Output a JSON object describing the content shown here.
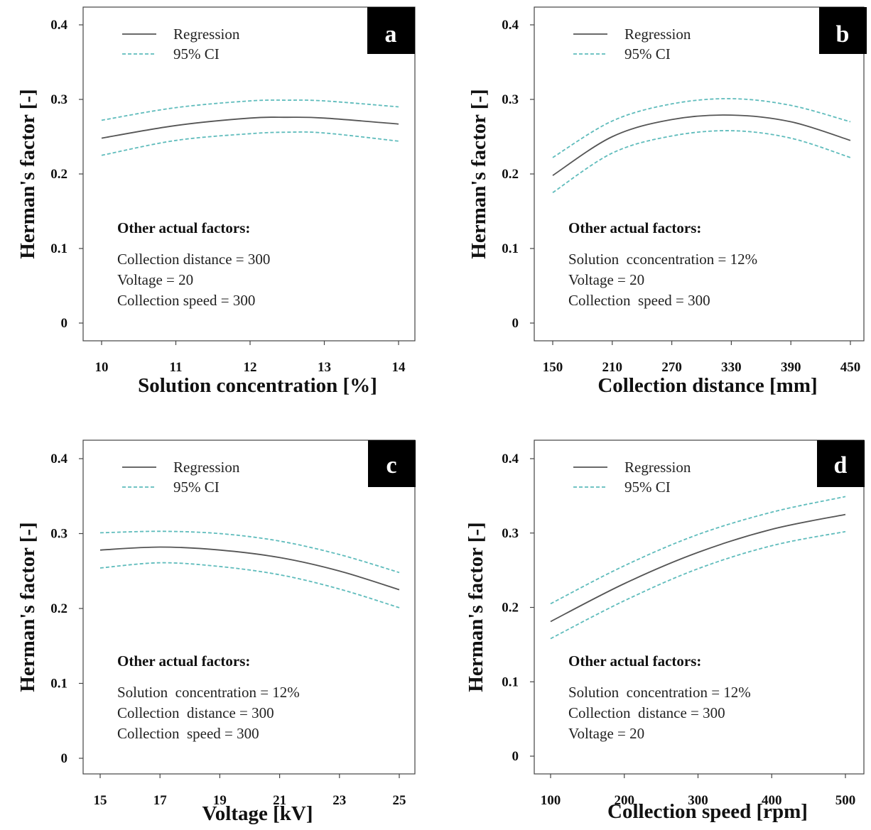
{
  "colors": {
    "regression": "#555555",
    "ci": "#5fbcbc",
    "frame": "#444444",
    "badge": "#000000"
  },
  "legend": {
    "regression": "Regression",
    "ci": "95% CI"
  },
  "ylabel": "Herman's factor [-]",
  "note_title": "Other actual factors:",
  "chart_data": [
    {
      "type": "line",
      "panel": "a",
      "xlabel": "Solution concentration [%]",
      "ylabel": "Herman's factor [-]",
      "xlim": [
        10,
        14
      ],
      "ylim": [
        0,
        0.4
      ],
      "xticks": [
        "10",
        "11",
        "12",
        "13",
        "14"
      ],
      "yticks": [
        "0",
        "0.1",
        "0.2",
        "0.3",
        "0.4"
      ],
      "grid": false,
      "legend_position": "top-left",
      "x": [
        10,
        11,
        12,
        12.5,
        13,
        14
      ],
      "series": [
        {
          "name": "Regression",
          "values": [
            0.248,
            0.265,
            0.275,
            0.276,
            0.275,
            0.267
          ]
        },
        {
          "name": "95% CI",
          "values": [
            0.272,
            0.289,
            0.298,
            0.299,
            0.298,
            0.29
          ]
        },
        {
          "name": "95% CI",
          "values": [
            0.225,
            0.245,
            0.254,
            0.256,
            0.255,
            0.244
          ]
        }
      ],
      "notes": [
        "Collection distance = 300",
        "Voltage = 20",
        "Collection speed = 300"
      ]
    },
    {
      "type": "line",
      "panel": "b",
      "xlabel": "Collection distance [mm]",
      "ylabel": "Herman's factor [-]",
      "xlim": [
        150,
        450
      ],
      "ylim": [
        0,
        0.4
      ],
      "xticks": [
        "150",
        "210",
        "270",
        "330",
        "390",
        "450"
      ],
      "yticks": [
        "0",
        "0.1",
        "0.2",
        "0.3",
        "0.4"
      ],
      "grid": false,
      "legend_position": "top-left",
      "x": [
        150,
        210,
        270,
        330,
        390,
        450
      ],
      "series": [
        {
          "name": "Regression",
          "values": [
            0.198,
            0.25,
            0.273,
            0.279,
            0.27,
            0.245
          ]
        },
        {
          "name": "95% CI",
          "values": [
            0.222,
            0.271,
            0.294,
            0.301,
            0.292,
            0.27
          ]
        },
        {
          "name": "95% CI",
          "values": [
            0.175,
            0.228,
            0.251,
            0.258,
            0.248,
            0.222
          ]
        }
      ],
      "notes": [
        "Solution  cconcentration = 12%",
        "Voltage = 20",
        "Collection  speed = 300"
      ]
    },
    {
      "type": "line",
      "panel": "c",
      "xlabel": "Voltage [kV]",
      "ylabel": "Herman's factor [-]",
      "xlim": [
        15,
        25
      ],
      "ylim": [
        0,
        0.4
      ],
      "xticks": [
        "15",
        "17",
        "19",
        "21",
        "23",
        "25"
      ],
      "yticks": [
        "0",
        "0.1",
        "0.2",
        "0.3",
        "0.4"
      ],
      "grid": false,
      "legend_position": "top-left",
      "x": [
        15,
        17,
        19,
        21,
        23,
        25
      ],
      "series": [
        {
          "name": "Regression",
          "values": [
            0.278,
            0.282,
            0.278,
            0.268,
            0.25,
            0.225
          ]
        },
        {
          "name": "95% CI",
          "values": [
            0.301,
            0.303,
            0.3,
            0.29,
            0.272,
            0.248
          ]
        },
        {
          "name": "95% CI",
          "values": [
            0.254,
            0.261,
            0.256,
            0.245,
            0.226,
            0.201
          ]
        }
      ],
      "notes": [
        "Solution  concentration = 12%",
        "Collection  distance = 300",
        "Collection  speed = 300"
      ]
    },
    {
      "type": "line",
      "panel": "d",
      "xlabel": "Collection speed [rpm]",
      "ylabel": "Herman's factor [-]",
      "xlim": [
        100,
        500
      ],
      "ylim": [
        0,
        0.4
      ],
      "xticks": [
        "100",
        "200",
        "300",
        "400",
        "500"
      ],
      "yticks": [
        "0",
        "0.1",
        "0.2",
        "0.3",
        "0.4"
      ],
      "grid": false,
      "legend_position": "top-left",
      "x": [
        100,
        200,
        300,
        400,
        500
      ],
      "series": [
        {
          "name": "Regression",
          "values": [
            0.181,
            0.232,
            0.274,
            0.305,
            0.325
          ]
        },
        {
          "name": "95% CI",
          "values": [
            0.205,
            0.256,
            0.298,
            0.328,
            0.349
          ]
        },
        {
          "name": "95% CI",
          "values": [
            0.158,
            0.209,
            0.252,
            0.283,
            0.302
          ]
        }
      ],
      "notes": [
        "Solution  concentration = 12%",
        "Collection  distance = 300",
        "Voltage = 20"
      ]
    }
  ]
}
